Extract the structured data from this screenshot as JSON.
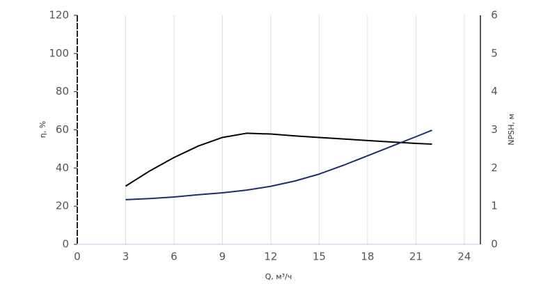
{
  "chart_data": {
    "type": "line",
    "x_label": "Q, м³/ч",
    "y_label": "η, %",
    "y2_label": "NPSH, м",
    "x": [
      3,
      4.5,
      6,
      7.5,
      9,
      10.5,
      12,
      13.5,
      15,
      16.5,
      18,
      19.5,
      21,
      22
    ],
    "series": [
      {
        "color": "#000000",
        "values": [
          30.5,
          38.5,
          45.5,
          51.5,
          56,
          58.2,
          57.8,
          56.8,
          56,
          55.2,
          54.4,
          53.6,
          52.9,
          52.5
        ]
      },
      {
        "color": "#1a2e6e",
        "axis": "y2",
        "values": [
          1.17,
          1.2,
          1.24,
          1.3,
          1.35,
          1.42,
          1.52,
          1.66,
          1.84,
          2.07,
          2.32,
          2.57,
          2.82,
          2.99
        ]
      }
    ],
    "xlim": [
      0,
      25
    ],
    "xticks": [
      0,
      3,
      6,
      9,
      12,
      15,
      18,
      21,
      24
    ],
    "ylim": [
      0,
      120
    ],
    "yticks": [
      0,
      20,
      40,
      60,
      80,
      100,
      120
    ],
    "y2lim": [
      0,
      6
    ],
    "y2ticks": [
      0,
      1,
      2,
      3,
      4,
      5,
      6
    ],
    "grid": true
  }
}
